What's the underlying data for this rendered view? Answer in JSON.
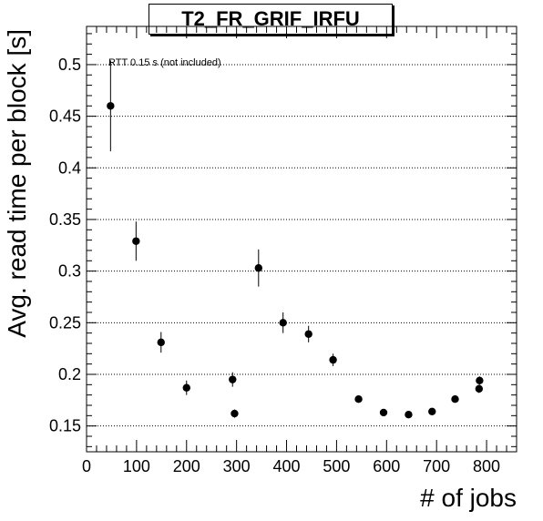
{
  "chart_data": {
    "type": "scatter",
    "title": "T2_FR_GRIF_IRFU",
    "xlabel": "# of jobs",
    "ylabel": "Avg. read time per block [s]",
    "annotation": "RTT 0.15 s (not included)",
    "xlim": [
      0,
      860
    ],
    "ylim": [
      0.125,
      0.537
    ],
    "xticks": [
      "0",
      "100",
      "200",
      "300",
      "400",
      "500",
      "600",
      "700",
      "800"
    ],
    "yticks": [
      "0.15",
      "0.2",
      "0.25",
      "0.3",
      "0.35",
      "0.4",
      "0.45",
      "0.5"
    ],
    "grid": "horizontal dotted",
    "marker_color": "#000000",
    "points": [
      {
        "x": 48,
        "y": 0.46,
        "err": 0.044
      },
      {
        "x": 99,
        "y": 0.329,
        "err": 0.019
      },
      {
        "x": 149,
        "y": 0.231,
        "err": 0.01
      },
      {
        "x": 200,
        "y": 0.187,
        "err": 0.007
      },
      {
        "x": 292,
        "y": 0.195,
        "err": 0.007
      },
      {
        "x": 296,
        "y": 0.162,
        "err": 0.004
      },
      {
        "x": 344,
        "y": 0.303,
        "err": 0.018
      },
      {
        "x": 393,
        "y": 0.25,
        "err": 0.01
      },
      {
        "x": 444,
        "y": 0.239,
        "err": 0.008
      },
      {
        "x": 493,
        "y": 0.214,
        "err": 0.006
      },
      {
        "x": 544,
        "y": 0.176,
        "err": 0.003
      },
      {
        "x": 594,
        "y": 0.163,
        "err": 0.003
      },
      {
        "x": 644,
        "y": 0.161,
        "err": 0.003
      },
      {
        "x": 691,
        "y": 0.164,
        "err": 0.003
      },
      {
        "x": 737,
        "y": 0.176,
        "err": 0.003
      },
      {
        "x": 785,
        "y": 0.186,
        "err": 0.004
      },
      {
        "x": 786,
        "y": 0.194,
        "err": 0.004
      }
    ]
  }
}
